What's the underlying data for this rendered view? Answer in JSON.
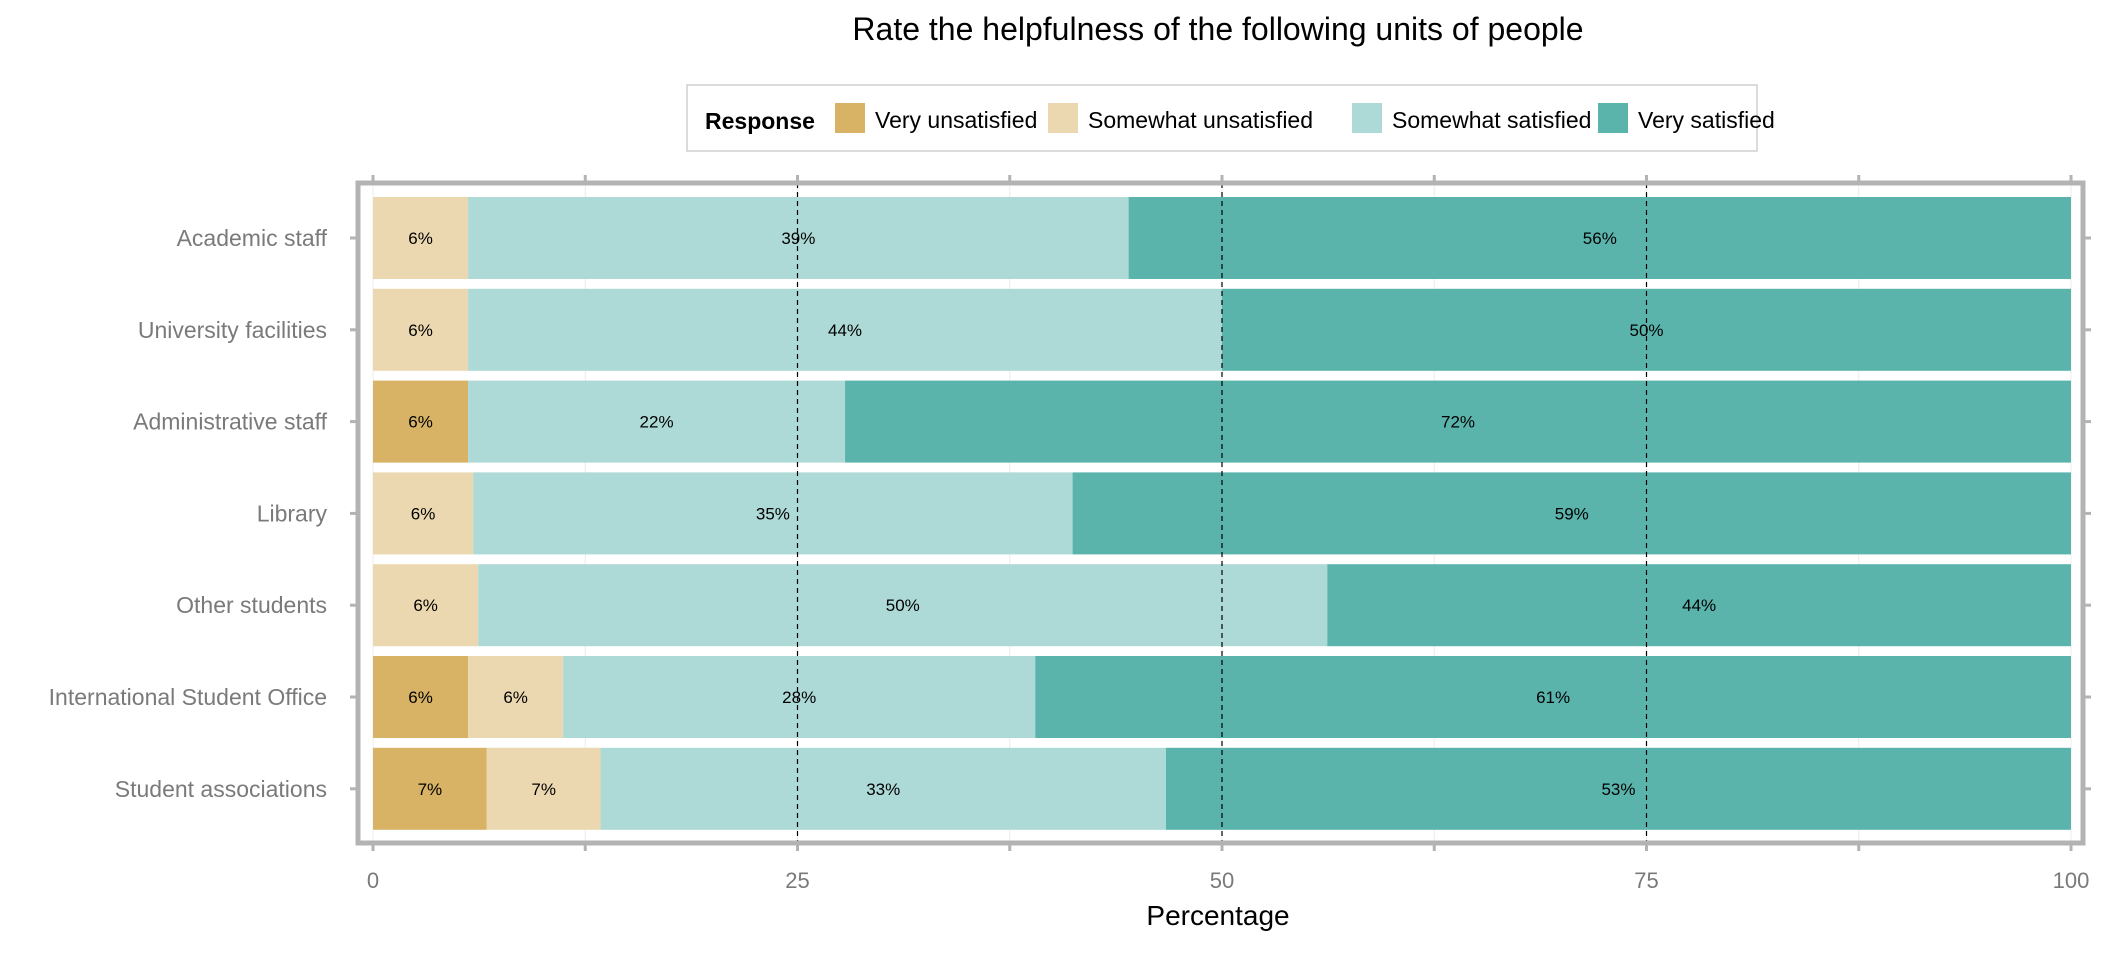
{
  "chart_data": {
    "type": "bar",
    "orientation": "horizontal",
    "stacked": true,
    "title": "Rate the helpfulness of the following units of people",
    "xlabel": "Percentage",
    "ylabel": "",
    "xlim": [
      0,
      100
    ],
    "xticks": [
      0,
      25,
      50,
      75,
      100
    ],
    "reference_lines": [
      25,
      50,
      75
    ],
    "legend": {
      "title": "Response",
      "position": "top"
    },
    "categories": [
      "Academic staff",
      "University facilities",
      "Administrative staff",
      "Library",
      "Other students",
      "International Student Office",
      "Student associations"
    ],
    "series": [
      {
        "name": "Very unsatisfied",
        "color": "#D8B365",
        "values": [
          0,
          0,
          5.6,
          0,
          0,
          5.6,
          6.7
        ],
        "labels": [
          "",
          "",
          "6%",
          "",
          "",
          "6%",
          "7%"
        ]
      },
      {
        "name": "Somewhat unsatisfied",
        "color": "#EBD8B0",
        "values": [
          5.6,
          5.6,
          0,
          5.9,
          6.2,
          5.6,
          6.7
        ],
        "labels": [
          "6%",
          "6%",
          "",
          "6%",
          "6%",
          "6%",
          "7%"
        ]
      },
      {
        "name": "Somewhat satisfied",
        "color": "#ADD9D6",
        "values": [
          38.9,
          44.4,
          22.2,
          35.3,
          50.0,
          27.8,
          33.3
        ],
        "labels": [
          "39%",
          "44%",
          "22%",
          "35%",
          "50%",
          "28%",
          "33%"
        ]
      },
      {
        "name": "Very satisfied",
        "color": "#5AB4AC",
        "values": [
          55.5,
          50.0,
          72.2,
          58.8,
          43.8,
          61.0,
          53.3
        ],
        "labels": [
          "56%",
          "50%",
          "72%",
          "59%",
          "44%",
          "61%",
          "53%"
        ]
      }
    ]
  }
}
